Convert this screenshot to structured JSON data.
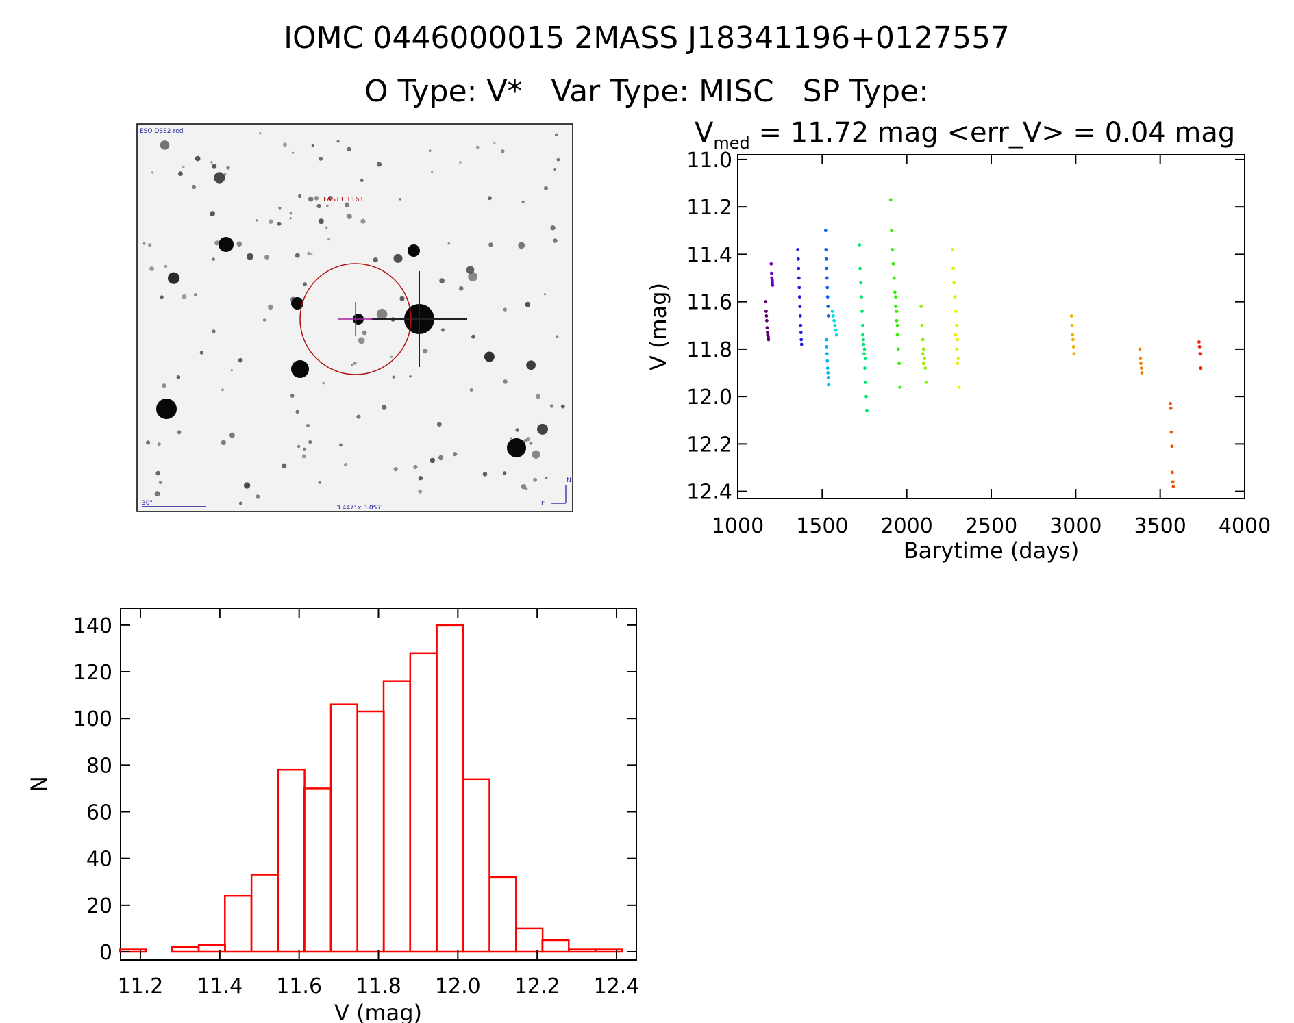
{
  "header": {
    "title": "IOMC 0446000015    2MASS J18341196+0127557",
    "subtitle": "O Type: V*   Var Type: MISC   SP Type:"
  },
  "finder_chart": {
    "survey_label": "ESO DSS2-red",
    "target_label": "FAST1 1161",
    "scale_label": "30\"",
    "fov_label": "3.447' x 3.057'",
    "north_label": "N",
    "east_label": "E"
  },
  "chart_data": [
    {
      "type": "scatter",
      "title_prefix": "V",
      "title_sub": "med",
      "title_rest": " = 11.72 mag <err_V> = 0.04 mag",
      "xlabel": "Barytime (days)",
      "ylabel": "V (mag)",
      "xlim": [
        1000,
        4000
      ],
      "ylim": [
        12.43,
        10.98
      ],
      "y_inverted": true,
      "xticks": [
        1000,
        1500,
        2000,
        2500,
        3000,
        3500,
        4000
      ],
      "yticks": [
        11.0,
        11.2,
        11.4,
        11.6,
        11.8,
        12.0,
        12.2,
        12.4
      ],
      "series": [
        {
          "color": "#5a0070",
          "x": [
            1165,
            1168,
            1170,
            1172,
            1174,
            1176,
            1178,
            1180,
            1182
          ],
          "y": [
            11.6,
            11.64,
            11.66,
            11.68,
            11.71,
            11.73,
            11.74,
            11.75,
            11.76
          ]
        },
        {
          "color": "#6a00c8",
          "x": [
            1198,
            1200,
            1202,
            1204,
            1205,
            1206
          ],
          "y": [
            11.44,
            11.48,
            11.5,
            11.51,
            11.52,
            11.53
          ]
        },
        {
          "color": "#2020e0",
          "x": [
            1355,
            1358,
            1360,
            1362,
            1364,
            1366,
            1368,
            1370,
            1372,
            1374,
            1376,
            1378
          ],
          "y": [
            11.38,
            11.42,
            11.46,
            11.5,
            11.54,
            11.58,
            11.62,
            11.66,
            11.7,
            11.73,
            11.76,
            11.78
          ]
        },
        {
          "color": "#1060f0",
          "x": [
            1520,
            1522,
            1524,
            1526,
            1528,
            1530,
            1532,
            1534,
            1536
          ],
          "y": [
            11.3,
            11.38,
            11.42,
            11.46,
            11.5,
            11.54,
            11.58,
            11.62,
            11.66
          ]
        },
        {
          "color": "#00b8f0",
          "x": [
            1524,
            1526,
            1528,
            1530,
            1532,
            1534,
            1536,
            1538
          ],
          "y": [
            11.76,
            11.79,
            11.82,
            11.85,
            11.88,
            11.9,
            11.92,
            11.95
          ]
        },
        {
          "color": "#00e0e0",
          "x": [
            1560,
            1565,
            1570,
            1575,
            1580,
            1585
          ],
          "y": [
            11.64,
            11.66,
            11.68,
            11.7,
            11.72,
            11.74
          ]
        },
        {
          "color": "#00e870",
          "x": [
            1720,
            1724,
            1728,
            1732,
            1736,
            1740,
            1744,
            1748,
            1752,
            1756,
            1760,
            1764,
            1740,
            1745,
            1750,
            1755
          ],
          "y": [
            11.36,
            11.46,
            11.52,
            11.58,
            11.64,
            11.7,
            11.76,
            11.82,
            11.88,
            11.94,
            12.0,
            12.06,
            11.74,
            11.78,
            11.8,
            11.84
          ]
        },
        {
          "color": "#30f000",
          "x": [
            1905,
            1910,
            1915,
            1920,
            1925,
            1930,
            1935,
            1940,
            1945,
            1950,
            1955,
            1960,
            1935,
            1940,
            1945
          ],
          "y": [
            11.17,
            11.3,
            11.38,
            11.44,
            11.5,
            11.56,
            11.62,
            11.68,
            11.74,
            11.8,
            11.86,
            11.96,
            11.58,
            11.64,
            11.7
          ]
        },
        {
          "color": "#90f000",
          "x": [
            2085,
            2090,
            2095,
            2100,
            2105,
            2110,
            2115,
            2095,
            2100
          ],
          "y": [
            11.62,
            11.7,
            11.76,
            11.8,
            11.84,
            11.88,
            11.94,
            11.82,
            11.86
          ]
        },
        {
          "color": "#e8f000",
          "x": [
            2270,
            2275,
            2280,
            2285,
            2290,
            2295,
            2300,
            2305,
            2310,
            2290,
            2295,
            2300
          ],
          "y": [
            11.38,
            11.46,
            11.52,
            11.58,
            11.64,
            11.7,
            11.76,
            11.84,
            11.96,
            11.74,
            11.8,
            11.86
          ]
        },
        {
          "color": "#f0b000",
          "x": [
            2975,
            2978,
            2981,
            2984,
            2987,
            2990
          ],
          "y": [
            11.66,
            11.7,
            11.74,
            11.76,
            11.79,
            11.82
          ]
        },
        {
          "color": "#f08000",
          "x": [
            3380,
            3383,
            3386,
            3389,
            3392
          ],
          "y": [
            11.8,
            11.84,
            11.86,
            11.88,
            11.9
          ]
        },
        {
          "color": "#f05000",
          "x": [
            3560,
            3563,
            3566,
            3569,
            3572,
            3575,
            3578
          ],
          "y": [
            12.03,
            12.05,
            12.15,
            12.21,
            12.32,
            12.36,
            12.38
          ]
        },
        {
          "color": "#f02000",
          "x": [
            3730,
            3733,
            3736,
            3739
          ],
          "y": [
            11.77,
            11.79,
            11.82,
            11.88
          ]
        }
      ]
    },
    {
      "type": "bar",
      "xlabel": "V (mag)",
      "ylabel": "N",
      "xlim": [
        11.15,
        12.45
      ],
      "ylim": [
        0,
        140
      ],
      "xticks": [
        11.2,
        11.4,
        11.6,
        11.8,
        12.0,
        12.2,
        12.4
      ],
      "yticks": [
        0,
        20,
        40,
        60,
        80,
        100,
        120,
        140
      ],
      "color": "#ff0000",
      "bin_width": 0.0667,
      "bin_starts": [
        11.147,
        11.213,
        11.28,
        11.347,
        11.413,
        11.48,
        11.547,
        11.613,
        11.68,
        11.747,
        11.813,
        11.88,
        11.947,
        12.013,
        12.08,
        12.147,
        12.213,
        12.28,
        12.347
      ],
      "values": [
        1,
        0,
        2,
        3,
        24,
        33,
        78,
        70,
        106,
        103,
        116,
        128,
        140,
        74,
        32,
        10,
        5,
        1,
        1
      ]
    }
  ]
}
